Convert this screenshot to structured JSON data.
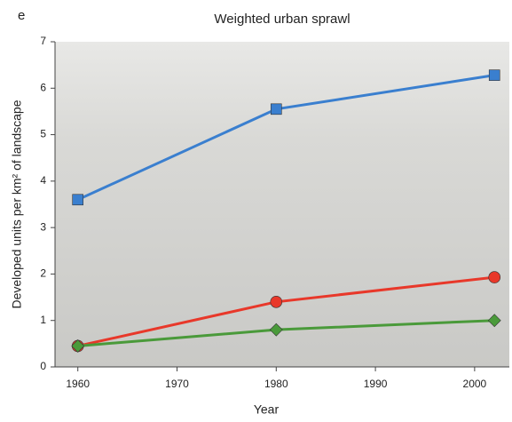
{
  "chart_data": {
    "type": "line",
    "panel_label": "e",
    "title": "Weighted urban sprawl",
    "xlabel": "Year",
    "ylabel": "Developed units per km² of landscape",
    "x": [
      1960,
      1980,
      2002
    ],
    "series": [
      {
        "color": "#3a7fcf",
        "marker": "square",
        "values": [
          3.6,
          5.55,
          6.28
        ]
      },
      {
        "color": "#e8382a",
        "marker": "circle",
        "values": [
          0.45,
          1.4,
          1.93
        ]
      },
      {
        "color": "#4a9a3a",
        "marker": "diamond",
        "values": [
          0.45,
          0.8,
          1.0
        ]
      }
    ],
    "xlim": [
      1957.7,
      2003.5
    ],
    "xticks": [
      1960,
      1970,
      1980,
      1990,
      2000
    ],
    "ylim": [
      0,
      7
    ],
    "yticks": [
      0,
      1,
      2,
      3,
      4,
      5,
      6,
      7
    ]
  }
}
